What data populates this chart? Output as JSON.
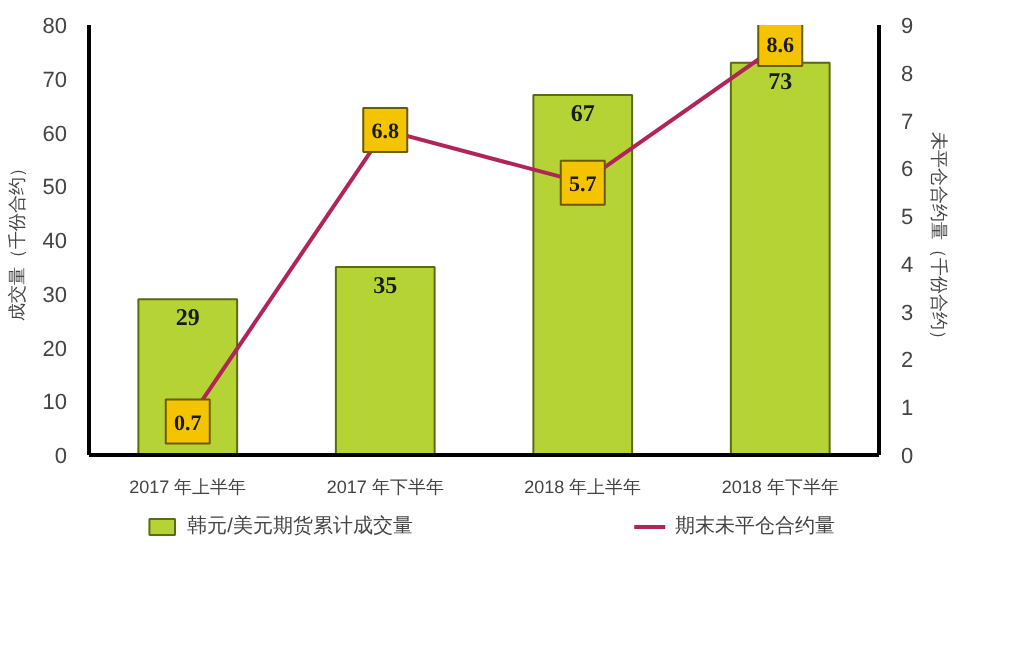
{
  "chart_data": {
    "type": "bar",
    "categories": [
      "2017 年上半年",
      "2017 年下半年",
      "2018 年上半年",
      "2018 年下半年"
    ],
    "ylabel": "成交量（千份合约）",
    "y2label": "未平仓合约量（千份合约）",
    "ylim": [
      0,
      80
    ],
    "yticks": [
      0,
      10,
      20,
      30,
      40,
      50,
      60,
      70,
      80
    ],
    "y2lim": [
      0,
      9
    ],
    "y2ticks": [
      0,
      1,
      2,
      3,
      4,
      5,
      6,
      7,
      8,
      9
    ],
    "series": [
      {
        "name": "韩元/美元期货累计成交量",
        "color": "#b5d334",
        "values": [
          29,
          35,
          67,
          73
        ]
      },
      {
        "name": "期末未平仓合约量",
        "type": "line",
        "axis": "y2",
        "color": "#b0245a",
        "marker": "square",
        "values": [
          0.7,
          6.8,
          5.7,
          8.6
        ]
      }
    ],
    "data_labels": true,
    "legend": "bottom",
    "grid": false
  }
}
